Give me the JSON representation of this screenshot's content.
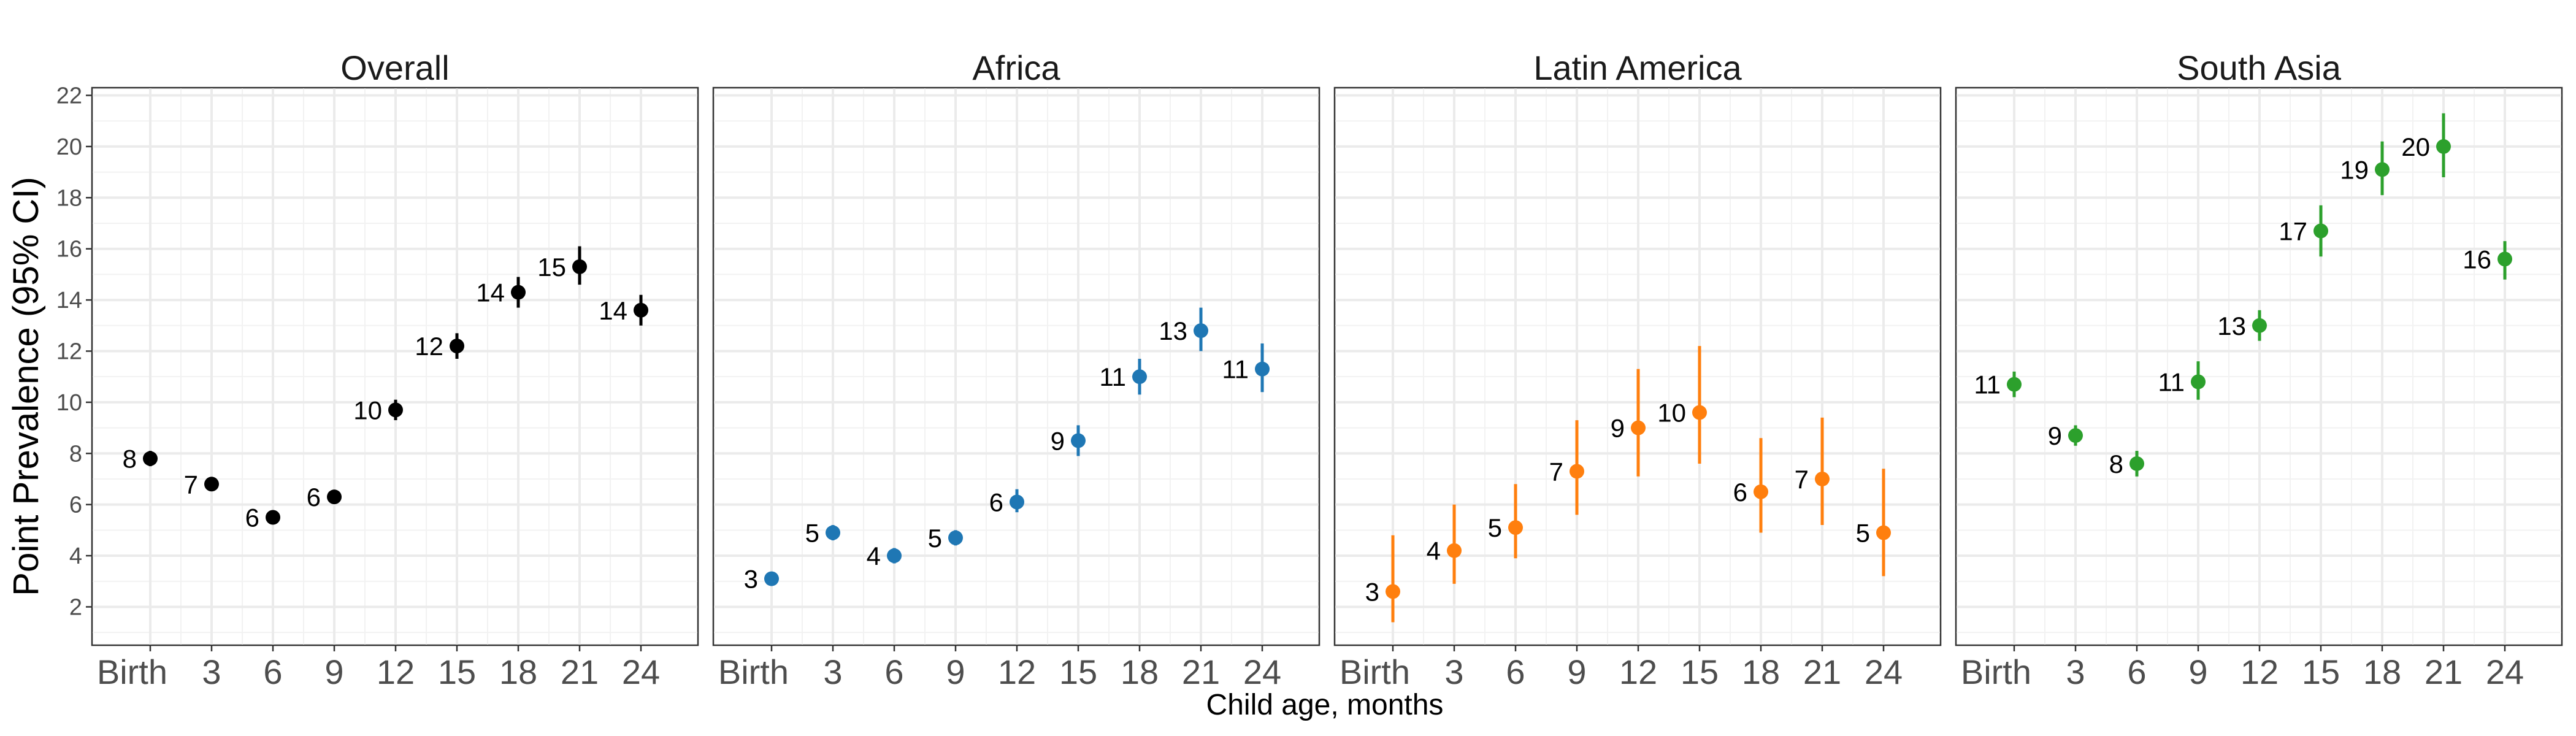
{
  "chart_data": {
    "type": "scatter",
    "ylabel": "Point Prevalence (95% CI)",
    "xlabel": "Child age, months",
    "x_categories": [
      "Birth",
      "3",
      "6",
      "9",
      "12",
      "15",
      "18",
      "21",
      "24"
    ],
    "ylim": [
      0.5,
      22.3
    ],
    "y_ticks": [
      2,
      4,
      6,
      8,
      10,
      12,
      14,
      16,
      18,
      20,
      22
    ],
    "grid": true,
    "legend": "none",
    "panels": [
      {
        "title": "Overall",
        "color": "#000000",
        "points": [
          {
            "x": "Birth",
            "y": 7.8,
            "lo": 7.5,
            "hi": 8.1,
            "label": "8"
          },
          {
            "x": "3",
            "y": 6.8,
            "lo": 6.6,
            "hi": 7.0,
            "label": "7"
          },
          {
            "x": "6",
            "y": 5.5,
            "lo": 5.3,
            "hi": 5.7,
            "label": "6"
          },
          {
            "x": "9",
            "y": 6.3,
            "lo": 6.1,
            "hi": 6.5,
            "label": "6"
          },
          {
            "x": "12",
            "y": 9.7,
            "lo": 9.3,
            "hi": 10.1,
            "label": "10"
          },
          {
            "x": "15",
            "y": 12.2,
            "lo": 11.7,
            "hi": 12.7,
            "label": "12"
          },
          {
            "x": "18",
            "y": 14.3,
            "lo": 13.7,
            "hi": 14.9,
            "label": "14"
          },
          {
            "x": "21",
            "y": 15.3,
            "lo": 14.6,
            "hi": 16.1,
            "label": "15"
          },
          {
            "x": "24",
            "y": 13.6,
            "lo": 13.0,
            "hi": 14.2,
            "label": "14"
          }
        ]
      },
      {
        "title": "Africa",
        "color": "#1f77b4",
        "points": [
          {
            "x": "Birth",
            "y": 3.1,
            "lo": 2.9,
            "hi": 3.3,
            "label": "3"
          },
          {
            "x": "3",
            "y": 4.9,
            "lo": 4.6,
            "hi": 5.2,
            "label": "5"
          },
          {
            "x": "6",
            "y": 4.0,
            "lo": 3.7,
            "hi": 4.3,
            "label": "4"
          },
          {
            "x": "9",
            "y": 4.7,
            "lo": 4.4,
            "hi": 5.0,
            "label": "5"
          },
          {
            "x": "12",
            "y": 6.1,
            "lo": 5.7,
            "hi": 6.6,
            "label": "6"
          },
          {
            "x": "15",
            "y": 8.5,
            "lo": 7.9,
            "hi": 9.1,
            "label": "9"
          },
          {
            "x": "18",
            "y": 11.0,
            "lo": 10.3,
            "hi": 11.7,
            "label": "11"
          },
          {
            "x": "21",
            "y": 12.8,
            "lo": 12.0,
            "hi": 13.7,
            "label": "13"
          },
          {
            "x": "24",
            "y": 11.3,
            "lo": 10.4,
            "hi": 12.3,
            "label": "11"
          }
        ]
      },
      {
        "title": "Latin America",
        "color": "#ff7f0e",
        "points": [
          {
            "x": "Birth",
            "y": 2.6,
            "lo": 1.4,
            "hi": 4.8,
            "label": "3"
          },
          {
            "x": "3",
            "y": 4.2,
            "lo": 2.9,
            "hi": 6.0,
            "label": "4"
          },
          {
            "x": "6",
            "y": 5.1,
            "lo": 3.9,
            "hi": 6.8,
            "label": "5"
          },
          {
            "x": "9",
            "y": 7.3,
            "lo": 5.6,
            "hi": 9.3,
            "label": "7"
          },
          {
            "x": "12",
            "y": 9.0,
            "lo": 7.1,
            "hi": 11.3,
            "label": "9"
          },
          {
            "x": "15",
            "y": 9.6,
            "lo": 7.6,
            "hi": 12.2,
            "label": "10"
          },
          {
            "x": "18",
            "y": 6.5,
            "lo": 4.9,
            "hi": 8.6,
            "label": "6"
          },
          {
            "x": "21",
            "y": 7.0,
            "lo": 5.2,
            "hi": 9.4,
            "label": "7"
          },
          {
            "x": "24",
            "y": 4.9,
            "lo": 3.2,
            "hi": 7.4,
            "label": "5"
          }
        ]
      },
      {
        "title": "South Asia",
        "color": "#2ca02c",
        "points": [
          {
            "x": "Birth",
            "y": 10.7,
            "lo": 10.2,
            "hi": 11.2,
            "label": "11"
          },
          {
            "x": "3",
            "y": 8.7,
            "lo": 8.3,
            "hi": 9.1,
            "label": "9"
          },
          {
            "x": "6",
            "y": 7.6,
            "lo": 7.1,
            "hi": 8.1,
            "label": "8"
          },
          {
            "x": "9",
            "y": 10.8,
            "lo": 10.1,
            "hi": 11.6,
            "label": "11"
          },
          {
            "x": "12",
            "y": 13.0,
            "lo": 12.4,
            "hi": 13.6,
            "label": "13"
          },
          {
            "x": "15",
            "y": 16.7,
            "lo": 15.7,
            "hi": 17.7,
            "label": "17"
          },
          {
            "x": "18",
            "y": 19.1,
            "lo": 18.1,
            "hi": 20.2,
            "label": "19"
          },
          {
            "x": "21",
            "y": 20.0,
            "lo": 18.8,
            "hi": 21.3,
            "label": "20"
          },
          {
            "x": "24",
            "y": 15.6,
            "lo": 14.8,
            "hi": 16.3,
            "label": "16"
          }
        ]
      }
    ]
  }
}
